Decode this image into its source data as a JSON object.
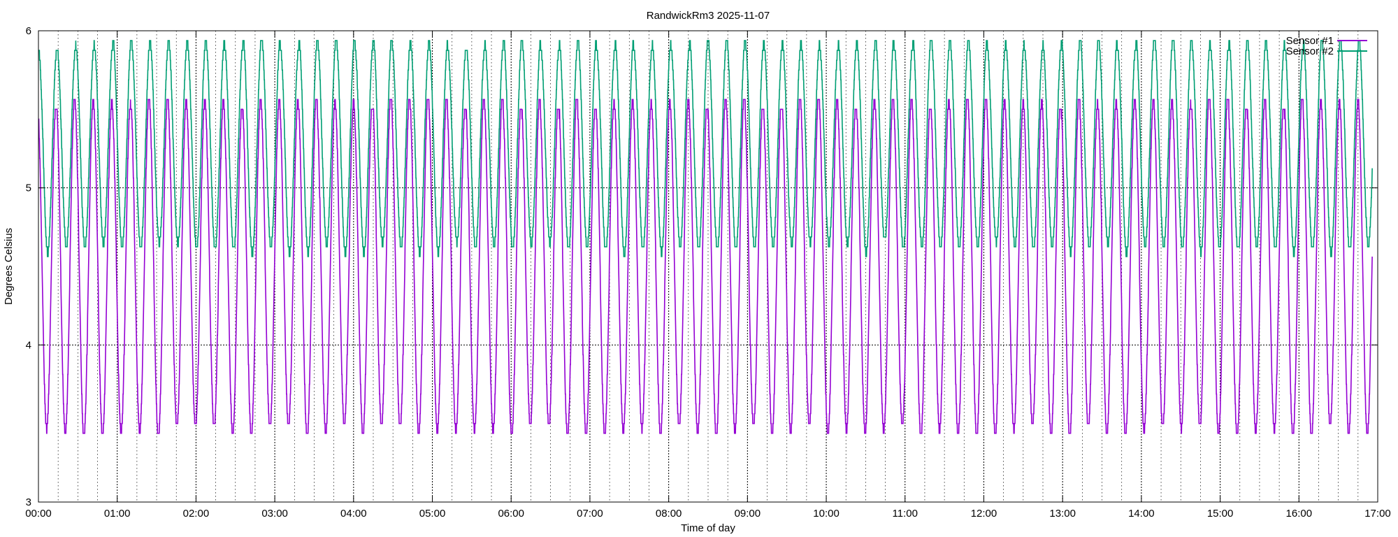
{
  "chart_data": {
    "type": "line",
    "title": "RandwickRm3 2025-11-07",
    "xlabel": "Time of day",
    "ylabel": "Degrees Celsius",
    "xlim": [
      0,
      17
    ],
    "ylim": [
      3,
      6
    ],
    "x_unit": "hours",
    "x_tick_labels": [
      "00:00",
      "01:00",
      "02:00",
      "03:00",
      "04:00",
      "05:00",
      "06:00",
      "07:00",
      "08:00",
      "09:00",
      "10:00",
      "11:00",
      "12:00",
      "13:00",
      "14:00",
      "15:00",
      "16:00",
      "17:00"
    ],
    "y_tick_labels": [
      "3",
      "4",
      "5",
      "6"
    ],
    "grid": true,
    "legend": "top-right",
    "cycle_period_hours": 0.2361,
    "series": [
      {
        "name": "Sensor #1",
        "color": "#9400d3",
        "min": 3.45,
        "max": 5.55
      },
      {
        "name": "Sensor #2",
        "color": "#009e73",
        "min": 4.62,
        "max": 5.92
      }
    ]
  }
}
